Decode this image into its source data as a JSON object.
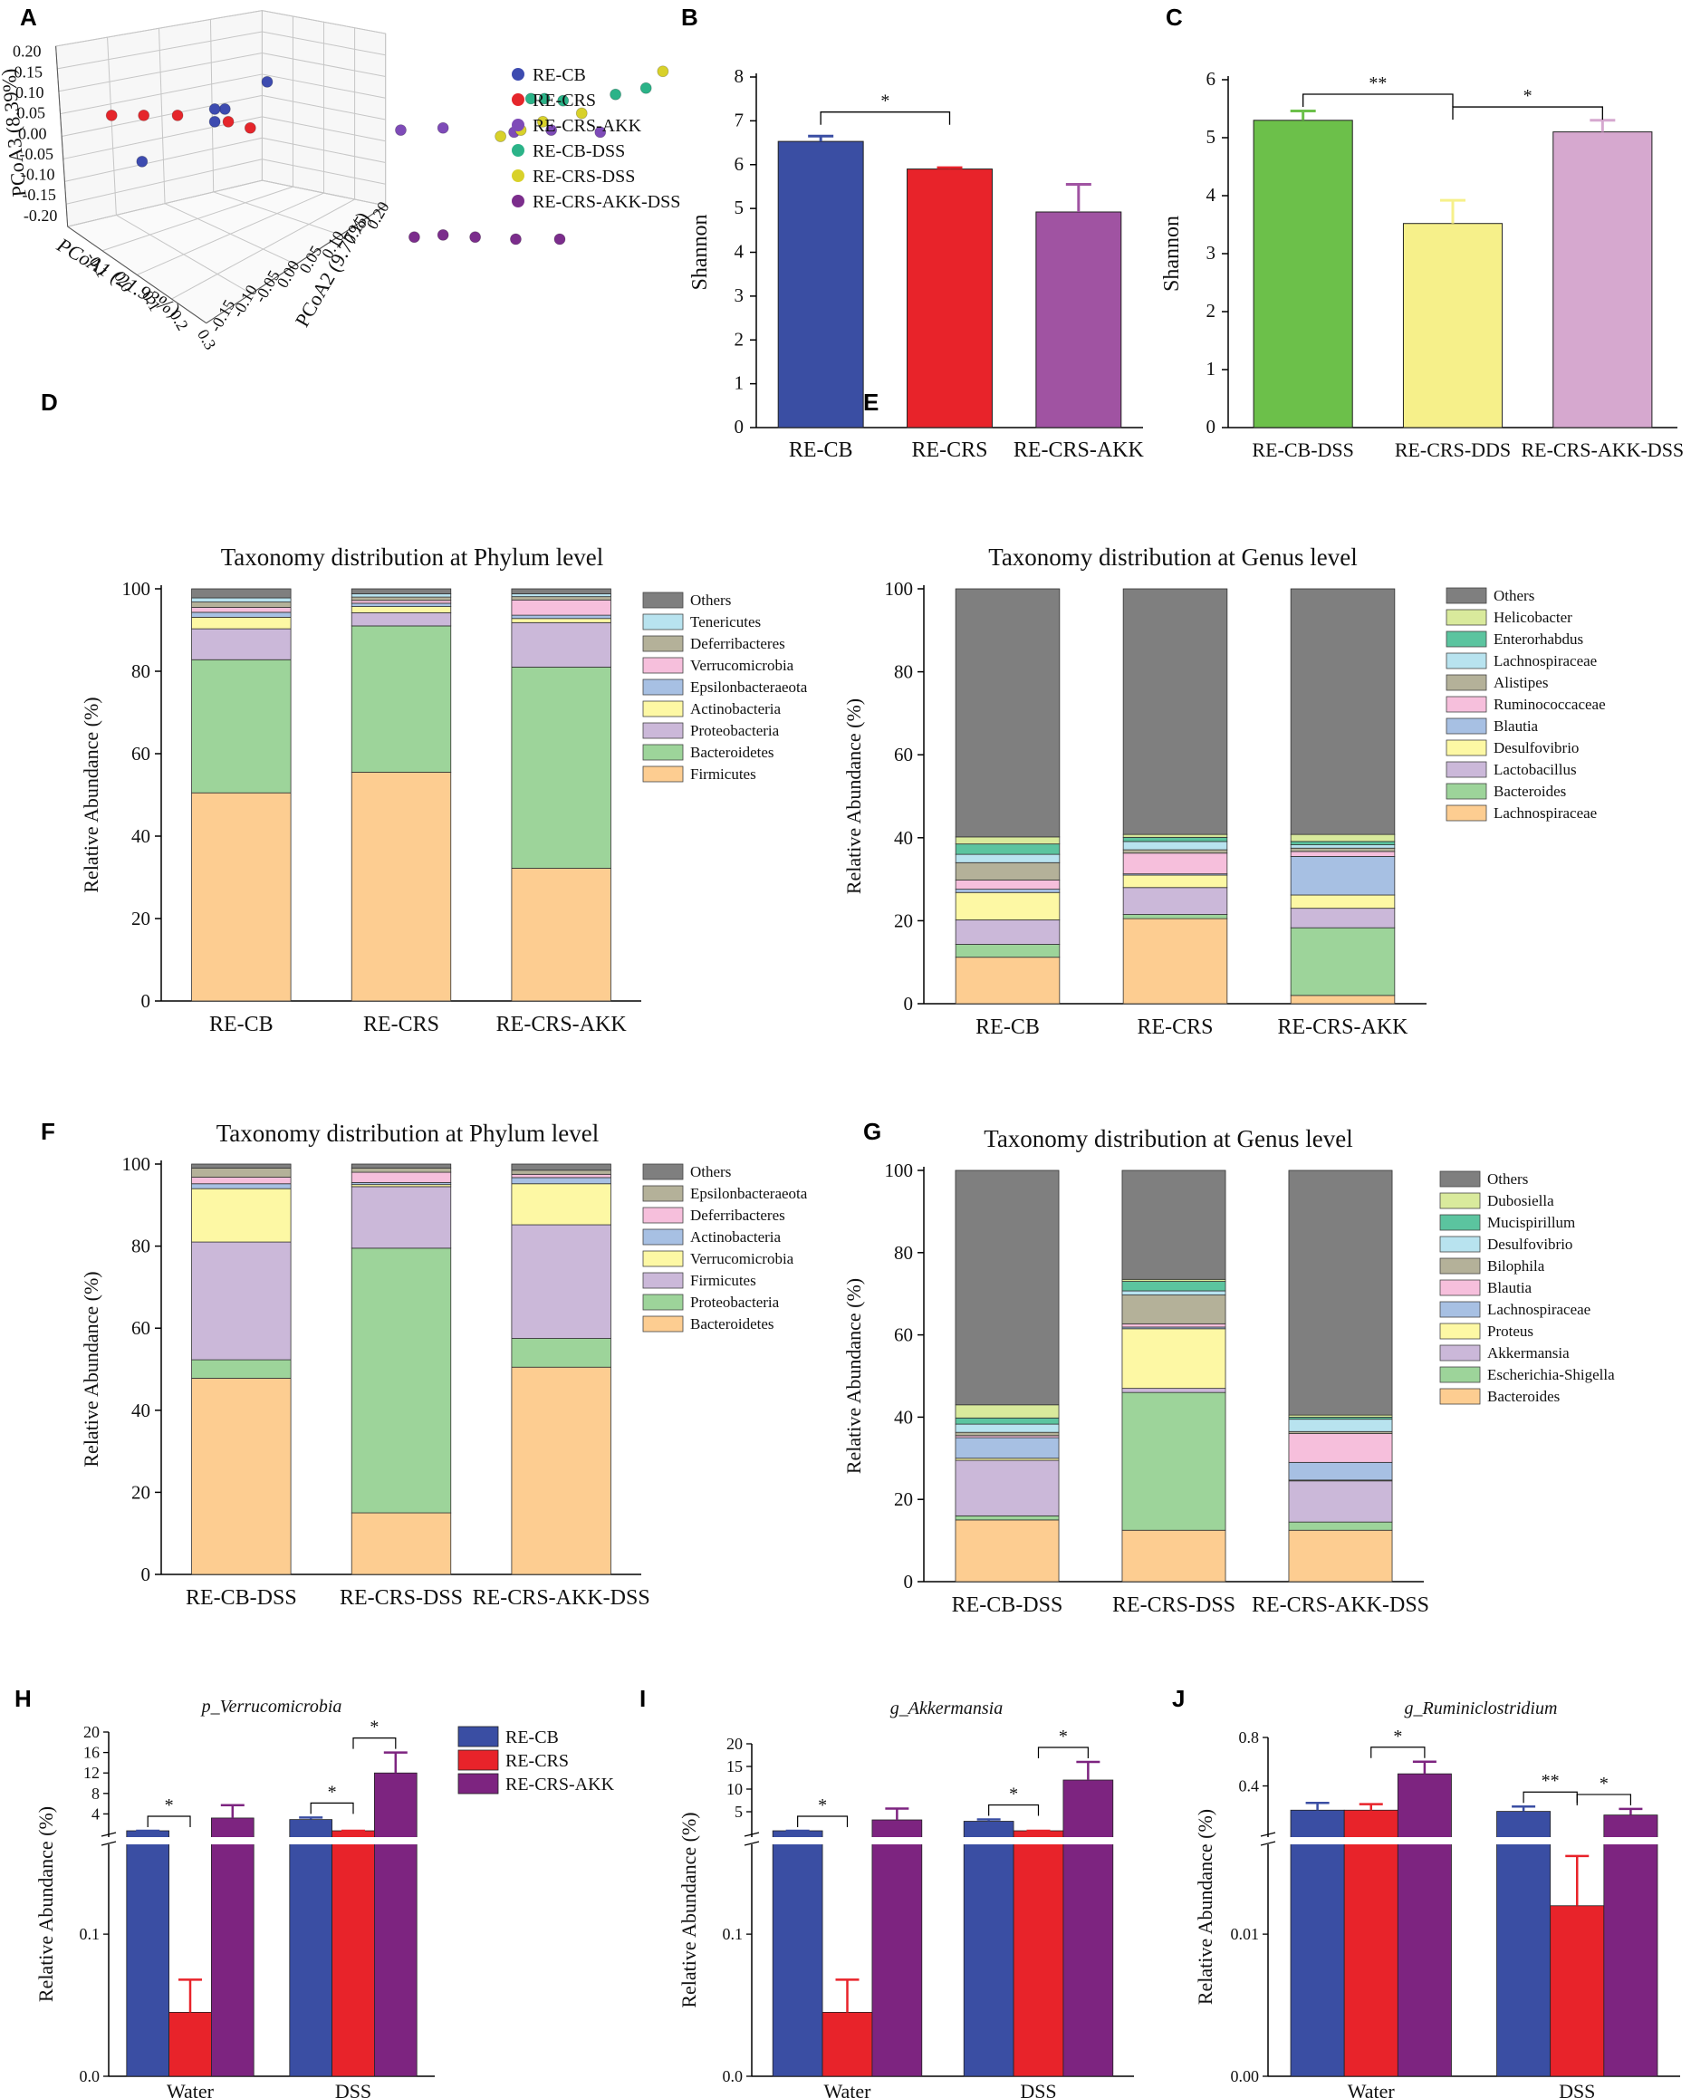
{
  "panel_letters": [
    "A",
    "B",
    "C",
    "D",
    "E",
    "F",
    "G",
    "H",
    "I",
    "J"
  ],
  "chart_data": [
    {
      "panel": "A",
      "type": "scatter",
      "title": "",
      "xlabel": "PCoA1 (21.93%)",
      "ylabel": "PCoA2 (9.77%)",
      "zlabel": "PCoA3 (8.39%)",
      "x_ticks": [
        "-0.1",
        "0.0",
        "0.1",
        "0.2",
        "0.3"
      ],
      "y_ticks": [
        "-0.15",
        "-0.10",
        "-0.05",
        "0.00",
        "0.05",
        "0.10",
        "0.15",
        "0.20"
      ],
      "z_ticks": [
        "0.20",
        "0.15",
        "0.10",
        "0.05",
        "0.00",
        "-0.05",
        "-0.10",
        "-0.15",
        "-0.20"
      ],
      "legend": [
        {
          "name": "RE-CB",
          "color": "#3d4bb0"
        },
        {
          "name": "RE-CRS",
          "color": "#e5262b"
        },
        {
          "name": "RE-CRS-AKK",
          "color": "#7e4bb8"
        },
        {
          "name": "RE-CB-DSS",
          "color": "#2bb388"
        },
        {
          "name": "RE-CRS-DSS",
          "color": "#d8d12a"
        },
        {
          "name": "RE-CRS-AKK-DSS",
          "color": "#7b2d8c"
        }
      ],
      "points": [
        {
          "g": 0,
          "u": 0.084,
          "v": 0.077
        },
        {
          "g": 0,
          "u": 0.127,
          "v": 0.058
        },
        {
          "g": 0,
          "u": 0.133,
          "v": 0.052
        },
        {
          "g": 0,
          "u": 0.158,
          "v": 0.039
        },
        {
          "g": 0,
          "u": 0.127,
          "v": 0.052
        },
        {
          "g": 1,
          "u": 0.066,
          "v": 0.055
        },
        {
          "g": 1,
          "u": 0.085,
          "v": 0.055
        },
        {
          "g": 1,
          "u": 0.105,
          "v": 0.055
        },
        {
          "g": 1,
          "u": 0.135,
          "v": 0.058
        },
        {
          "g": 1,
          "u": 0.148,
          "v": 0.061
        },
        {
          "g": 2,
          "u": 0.237,
          "v": 0.062
        },
        {
          "g": 2,
          "u": 0.262,
          "v": 0.061
        },
        {
          "g": 2,
          "u": 0.304,
          "v": 0.063
        },
        {
          "g": 2,
          "u": 0.326,
          "v": 0.062
        },
        {
          "g": 2,
          "u": 0.355,
          "v": 0.063
        },
        {
          "g": 3,
          "u": 0.314,
          "v": 0.047
        },
        {
          "g": 3,
          "u": 0.322,
          "v": 0.047
        },
        {
          "g": 3,
          "u": 0.333,
          "v": 0.048
        },
        {
          "g": 3,
          "u": 0.364,
          "v": 0.045
        },
        {
          "g": 3,
          "u": 0.382,
          "v": 0.042
        },
        {
          "g": 4,
          "u": 0.296,
          "v": 0.065
        },
        {
          "g": 4,
          "u": 0.308,
          "v": 0.062
        },
        {
          "g": 4,
          "u": 0.321,
          "v": 0.058
        },
        {
          "g": 4,
          "u": 0.344,
          "v": 0.054
        },
        {
          "g": 4,
          "u": 0.392,
          "v": 0.034
        },
        {
          "g": 5,
          "u": 0.245,
          "v": 0.113
        },
        {
          "g": 5,
          "u": 0.262,
          "v": 0.112
        },
        {
          "g": 5,
          "u": 0.281,
          "v": 0.113
        },
        {
          "g": 5,
          "u": 0.305,
          "v": 0.114
        },
        {
          "g": 5,
          "u": 0.331,
          "v": 0.114
        }
      ]
    },
    {
      "panel": "B",
      "type": "bar",
      "title": "",
      "xlabel": "",
      "ylabel": "Shannon",
      "ylim": [
        0,
        8
      ],
      "y_ticks": [
        0,
        1,
        2,
        3,
        4,
        5,
        6,
        7,
        8
      ],
      "categories": [
        "RE-CB",
        "RE-CRS",
        "RE-CRS-AKK"
      ],
      "values": [
        6.53,
        5.9,
        4.92
      ],
      "errors": [
        0.12,
        0.03,
        0.63
      ],
      "colors": [
        "#3a4ea3",
        "#e8232a",
        "#a053a2"
      ],
      "significance": [
        {
          "from": 0,
          "to": 1,
          "label": "*",
          "y": 7.2
        }
      ]
    },
    {
      "panel": "C",
      "type": "bar",
      "title": "",
      "xlabel": "",
      "ylabel": "Shannon",
      "ylim": [
        0,
        6
      ],
      "y_ticks": [
        0,
        1,
        2,
        3,
        4,
        5,
        6
      ],
      "categories": [
        "RE-CB-DSS",
        "RE-CRS-DDS",
        "RE-CRS-AKK-DSS"
      ],
      "values": [
        5.3,
        3.52,
        5.1
      ],
      "errors": [
        0.16,
        0.4,
        0.2
      ],
      "colors": [
        "#6cc04a",
        "#f6f08a",
        "#d6a8cf"
      ],
      "significance": [
        {
          "from": 0,
          "to": 1,
          "label": "**",
          "y": 5.75
        },
        {
          "from": 1,
          "to": 2,
          "label": "*",
          "y": 5.53
        }
      ]
    },
    {
      "panel": "D",
      "type": "bar",
      "stacked": true,
      "title": "Taxonomy distribution at Phylum level",
      "xlabel": "",
      "ylabel": "Relative Abundance (%)",
      "ylim": [
        0,
        100
      ],
      "y_ticks": [
        0,
        20,
        40,
        60,
        80,
        100
      ],
      "categories": [
        "RE-CB",
        "RE-CRS",
        "RE-CRS-AKK"
      ],
      "series": [
        {
          "name": "Firmicutes",
          "color": "#fdcd91",
          "values": [
            50.5,
            55.5,
            32.2
          ]
        },
        {
          "name": "Bacteroidetes",
          "color": "#9dd49a",
          "values": [
            32.3,
            35.5,
            48.8
          ]
        },
        {
          "name": "Proteobacteria",
          "color": "#cbb8d9",
          "values": [
            7.5,
            3.2,
            10.8
          ]
        },
        {
          "name": "Actinobacteria",
          "color": "#fdf8a4",
          "values": [
            2.8,
            1.5,
            1.0
          ]
        },
        {
          "name": "Epsilonbacteraeota",
          "color": "#a7c0e3",
          "values": [
            1.2,
            0.8,
            0.8
          ]
        },
        {
          "name": "Verrucomicrobia",
          "color": "#f6bfdc",
          "values": [
            1.2,
            0.7,
            3.7
          ]
        },
        {
          "name": "Deferribacteres",
          "color": "#b4b199",
          "values": [
            1.3,
            0.8,
            0.8
          ]
        },
        {
          "name": "Tenericutes",
          "color": "#b8e3ef",
          "values": [
            1.0,
            0.8,
            0.7
          ]
        },
        {
          "name": "Others",
          "color": "#7f7f7f",
          "values": [
            2.2,
            1.2,
            1.2
          ]
        }
      ],
      "legend_labels": [
        "Others",
        "Tenericutes",
        "Deferribacteres",
        "Verrucomicrobia",
        "Epsilonbacteraeota",
        "Actinobacteria",
        "Proteobacteria",
        "Bacteroidetes",
        "Firmicutes"
      ]
    },
    {
      "panel": "E",
      "type": "bar",
      "stacked": true,
      "title": "Taxonomy distribution at Genus level",
      "xlabel": "",
      "ylabel": "Relative Abundance (%)",
      "ylim": [
        0,
        100
      ],
      "y_ticks": [
        0,
        20,
        40,
        60,
        80,
        100
      ],
      "categories": [
        "RE-CB",
        "RE-CRS",
        "RE-CRS-AKK"
      ],
      "series": [
        {
          "name": "Lachnospiraceae",
          "color": "#fdcd91",
          "values": [
            11.2,
            20.5,
            2.0
          ]
        },
        {
          "name": "Bacteroides",
          "color": "#9dd49a",
          "values": [
            3.1,
            1.0,
            16.3
          ]
        },
        {
          "name": "Lactobacillus",
          "color": "#cbb8d9",
          "values": [
            5.9,
            6.5,
            4.7
          ]
        },
        {
          "name": "Desulfovibrio",
          "color": "#fdf8a4",
          "values": [
            6.6,
            3.0,
            3.2
          ]
        },
        {
          "name": "Blautia",
          "color": "#a7c0e3",
          "values": [
            0.8,
            0.3,
            9.3
          ]
        },
        {
          "name": "Ruminococcaceae",
          "color": "#f6bfdc",
          "values": [
            2.2,
            5.0,
            1.2
          ]
        },
        {
          "name": "Alistipes",
          "color": "#b4b199",
          "values": [
            4.2,
            0.8,
            0.8
          ]
        },
        {
          "name": "Lachnospiraceae",
          "color": "#b8e3ef",
          "values": [
            2.0,
            2.0,
            0.8
          ]
        },
        {
          "name": "Enterorhabdus",
          "color": "#5bc49f",
          "values": [
            2.5,
            1.0,
            0.8
          ]
        },
        {
          "name": "Helicobacter",
          "color": "#d9ea9c",
          "values": [
            1.7,
            0.7,
            1.7
          ]
        },
        {
          "name": "Others",
          "color": "#7f7f7f",
          "values": [
            59.8,
            59.2,
            59.2
          ]
        }
      ],
      "legend_labels": [
        "Others",
        "Helicobacter",
        "Enterorhabdus",
        "Lachnospiraceae",
        "Alistipes",
        "Ruminococcaceae",
        "Blautia",
        "Desulfovibrio",
        "Lactobacillus",
        "Bacteroides",
        "Lachnospiraceae"
      ]
    },
    {
      "panel": "F",
      "type": "bar",
      "stacked": true,
      "title": "Taxonomy distribution at Phylum level",
      "xlabel": "",
      "ylabel": "Relative Abundance (%)",
      "ylim": [
        0,
        100
      ],
      "y_ticks": [
        0,
        20,
        40,
        60,
        80,
        100
      ],
      "categories": [
        "RE-CB-DSS",
        "RE-CRS-DSS",
        "RE-CRS-AKK-DSS"
      ],
      "series": [
        {
          "name": "Bacteroidetes",
          "color": "#fdcd91",
          "values": [
            47.8,
            15.0,
            50.5
          ]
        },
        {
          "name": "Proteobacteria",
          "color": "#9dd49a",
          "values": [
            4.5,
            64.5,
            7.0
          ]
        },
        {
          "name": "Firmicutes",
          "color": "#cbb8d9",
          "values": [
            28.7,
            15.0,
            27.7
          ]
        },
        {
          "name": "Verrucomicrobia",
          "color": "#fdf8a4",
          "values": [
            13.0,
            0.5,
            10.0
          ]
        },
        {
          "name": "Actinobacteria",
          "color": "#a7c0e3",
          "values": [
            1.2,
            0.5,
            1.5
          ]
        },
        {
          "name": "Deferribacteres",
          "color": "#f6bfdc",
          "values": [
            1.6,
            2.5,
            0.8
          ]
        },
        {
          "name": "Epsilonbacteraeota",
          "color": "#b4b199",
          "values": [
            2.2,
            1.0,
            1.0
          ]
        },
        {
          "name": "Others",
          "color": "#7f7f7f",
          "values": [
            1.0,
            1.0,
            1.5
          ]
        }
      ],
      "legend_labels": [
        "Others",
        "Epsilonbacteraeota",
        "Deferribacteres",
        "Actinobacteria",
        "Verrucomicrobia",
        "Firmicutes",
        "Proteobacteria",
        "Bacteroidetes"
      ]
    },
    {
      "panel": "G",
      "type": "bar",
      "stacked": true,
      "title": "Taxonomy distribution at Genus level",
      "xlabel": "",
      "ylabel": "Relative Abundance (%)",
      "ylim": [
        0,
        100
      ],
      "y_ticks": [
        0,
        20,
        40,
        60,
        80,
        100
      ],
      "categories": [
        "RE-CB-DSS",
        "RE-CRS-DSS",
        "RE-CRS-AKK-DSS"
      ],
      "series": [
        {
          "name": "Bacteroides",
          "color": "#fdcd91",
          "values": [
            15.0,
            12.5,
            12.5
          ]
        },
        {
          "name": "Escherichia-Shigella",
          "color": "#9dd49a",
          "values": [
            1.0,
            33.5,
            2.0
          ]
        },
        {
          "name": "Akkermansia",
          "color": "#cbb8d9",
          "values": [
            13.5,
            1.0,
            10.0
          ]
        },
        {
          "name": "Proteus",
          "color": "#fdf8a4",
          "values": [
            0.5,
            14.5,
            0.2
          ]
        },
        {
          "name": "Lachnospiraceae",
          "color": "#a7c0e3",
          "values": [
            5.0,
            0.4,
            4.3
          ]
        },
        {
          "name": "Blautia",
          "color": "#f6bfdc",
          "values": [
            0.5,
            0.8,
            7.0
          ]
        },
        {
          "name": "Bilophila",
          "color": "#b4b199",
          "values": [
            0.8,
            7.0,
            0.5
          ]
        },
        {
          "name": "Desulfovibrio",
          "color": "#b8e3ef",
          "values": [
            2.0,
            1.0,
            3.0
          ]
        },
        {
          "name": "Mucispirillum",
          "color": "#5bc49f",
          "values": [
            1.5,
            2.3,
            0.5
          ]
        },
        {
          "name": "Dubosiella",
          "color": "#d9ea9c",
          "values": [
            3.2,
            0.5,
            0.5
          ]
        },
        {
          "name": "Others",
          "color": "#7f7f7f",
          "values": [
            57.0,
            26.5,
            59.5
          ]
        }
      ],
      "legend_labels": [
        "Others",
        "Dubosiella",
        "Mucispirillum",
        "Desulfovibrio",
        "Bilophila",
        "Blautia",
        "Lachnospiraceae",
        "Proteus",
        "Akkermansia",
        "Escherichia-Shigella",
        "Bacteroides"
      ]
    },
    {
      "panel": "H",
      "type": "bar",
      "title": "p_Verrucomicrobia",
      "xlabel": "",
      "ylabel": "Relative Abundance (%)",
      "categories": [
        "Water",
        "DSS"
      ],
      "upper_ticks": [
        4,
        8,
        12,
        16,
        20
      ],
      "lower_ticks": [
        0.0,
        0.1
      ],
      "broken_axis": {
        "lower_range": [
          0,
          0.16
        ],
        "upper_range": [
          0,
          20
        ]
      },
      "series": [
        {
          "name": "RE-CB",
          "color": "#3a4ea3",
          "values": [
            0.45,
            2.9
          ],
          "errors": [
            0.2,
            0.4
          ]
        },
        {
          "name": "RE-CRS",
          "color": "#e8232a",
          "values": [
            0.045,
            0.3
          ],
          "errors": [
            0.023,
            0.1
          ]
        },
        {
          "name": "RE-CRS-AKK",
          "color": "#7d2480",
          "values": [
            3.2,
            12.0
          ],
          "errors": [
            2.5,
            4.0
          ]
        }
      ],
      "significance": [
        {
          "group": 0,
          "from": 0,
          "to": 1,
          "label": "*"
        },
        {
          "group": 1,
          "from": 0,
          "to": 1,
          "label": "*"
        },
        {
          "group": 1,
          "from": 1,
          "to": 2,
          "label": "*"
        }
      ]
    },
    {
      "panel": "I",
      "type": "bar",
      "title": "g_Akkermansia",
      "xlabel": "",
      "ylabel": "Relative Abundance (%)",
      "categories": [
        "Water",
        "DSS"
      ],
      "upper_ticks": [
        5,
        10,
        15,
        20
      ],
      "lower_ticks": [
        0.0,
        0.1
      ],
      "broken_axis": {
        "lower_range": [
          0,
          0.16
        ],
        "upper_range": [
          0,
          20
        ]
      },
      "series": [
        {
          "name": "RE-CB",
          "color": "#3a4ea3",
          "values": [
            0.5,
            2.9
          ],
          "errors": [
            0.2,
            0.4
          ]
        },
        {
          "name": "RE-CRS",
          "color": "#e8232a",
          "values": [
            0.045,
            0.3
          ],
          "errors": [
            0.023,
            0.1
          ]
        },
        {
          "name": "RE-CRS-AKK",
          "color": "#7d2480",
          "values": [
            3.2,
            12.0
          ],
          "errors": [
            2.5,
            4.0
          ]
        }
      ],
      "significance": [
        {
          "group": 0,
          "from": 0,
          "to": 1,
          "label": "*"
        },
        {
          "group": 1,
          "from": 0,
          "to": 1,
          "label": "*"
        },
        {
          "group": 1,
          "from": 1,
          "to": 2,
          "label": "*"
        }
      ]
    },
    {
      "panel": "J",
      "type": "bar",
      "title": "g_Ruminiclostridium",
      "xlabel": "",
      "ylabel": "Relative Abundance (%)",
      "categories": [
        "Water",
        "DSS"
      ],
      "upper_ticks": [
        0.4,
        0.8
      ],
      "lower_ticks": [
        "0.00",
        "0.01"
      ],
      "broken_axis": {
        "lower_range": [
          0,
          0.016
        ],
        "upper_range": [
          0,
          0.8
        ]
      },
      "series": [
        {
          "name": "RE-CB",
          "color": "#3a4ea3",
          "values": [
            0.2,
            0.19
          ],
          "errors": [
            0.06,
            0.04
          ]
        },
        {
          "name": "RE-CRS",
          "color": "#e8232a",
          "values": [
            0.2,
            0.012
          ],
          "errors": [
            0.05,
            0.0035
          ]
        },
        {
          "name": "RE-CRS-AKK",
          "color": "#7d2480",
          "values": [
            0.5,
            0.16
          ],
          "errors": [
            0.1,
            0.05
          ]
        }
      ],
      "significance": [
        {
          "group": 0,
          "from": 1,
          "to": 2,
          "label": "*"
        },
        {
          "group": 1,
          "from": 0,
          "to": 1,
          "label": "**"
        },
        {
          "group": 1,
          "from": 1,
          "to": 2,
          "label": "*"
        }
      ]
    }
  ],
  "hij_legend": [
    {
      "name": "RE-CB",
      "color": "#3a4ea3"
    },
    {
      "name": "RE-CRS",
      "color": "#e8232a"
    },
    {
      "name": "RE-CRS-AKK",
      "color": "#7d2480"
    }
  ]
}
